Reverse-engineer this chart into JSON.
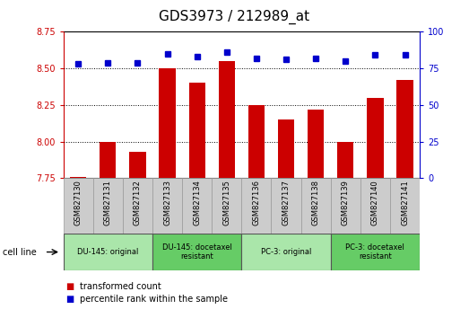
{
  "title": "GDS3973 / 212989_at",
  "samples": [
    "GSM827130",
    "GSM827131",
    "GSM827132",
    "GSM827133",
    "GSM827134",
    "GSM827135",
    "GSM827136",
    "GSM827137",
    "GSM827138",
    "GSM827139",
    "GSM827140",
    "GSM827141"
  ],
  "bar_values": [
    7.76,
    8.0,
    7.93,
    8.5,
    8.4,
    8.55,
    8.25,
    8.15,
    8.22,
    8.0,
    8.3,
    8.42
  ],
  "dot_values": [
    78,
    79,
    79,
    85,
    83,
    86,
    82,
    81,
    82,
    80,
    84,
    84
  ],
  "ylim_left": [
    7.75,
    8.75
  ],
  "ylim_right": [
    0,
    100
  ],
  "yticks_left": [
    7.75,
    8.0,
    8.25,
    8.5,
    8.75
  ],
  "yticks_right": [
    0,
    25,
    50,
    75,
    100
  ],
  "bar_color": "#cc0000",
  "dot_color": "#0000cc",
  "bar_bottom": 7.75,
  "groups": [
    {
      "label": "DU-145: original",
      "start": 0,
      "end": 3,
      "color": "#aae6aa"
    },
    {
      "label": "DU-145: docetaxel\nresistant",
      "start": 3,
      "end": 6,
      "color": "#66cc66"
    },
    {
      "label": "PC-3: original",
      "start": 6,
      "end": 9,
      "color": "#aae6aa"
    },
    {
      "label": "PC-3: docetaxel\nresistant",
      "start": 9,
      "end": 12,
      "color": "#66cc66"
    }
  ],
  "cell_line_label": "cell line",
  "legend_items": [
    {
      "label": "transformed count",
      "color": "#cc0000"
    },
    {
      "label": "percentile rank within the sample",
      "color": "#0000cc"
    }
  ],
  "bg_color": "#ffffff",
  "title_fontsize": 11,
  "tick_fontsize": 7,
  "sample_fontsize": 6
}
